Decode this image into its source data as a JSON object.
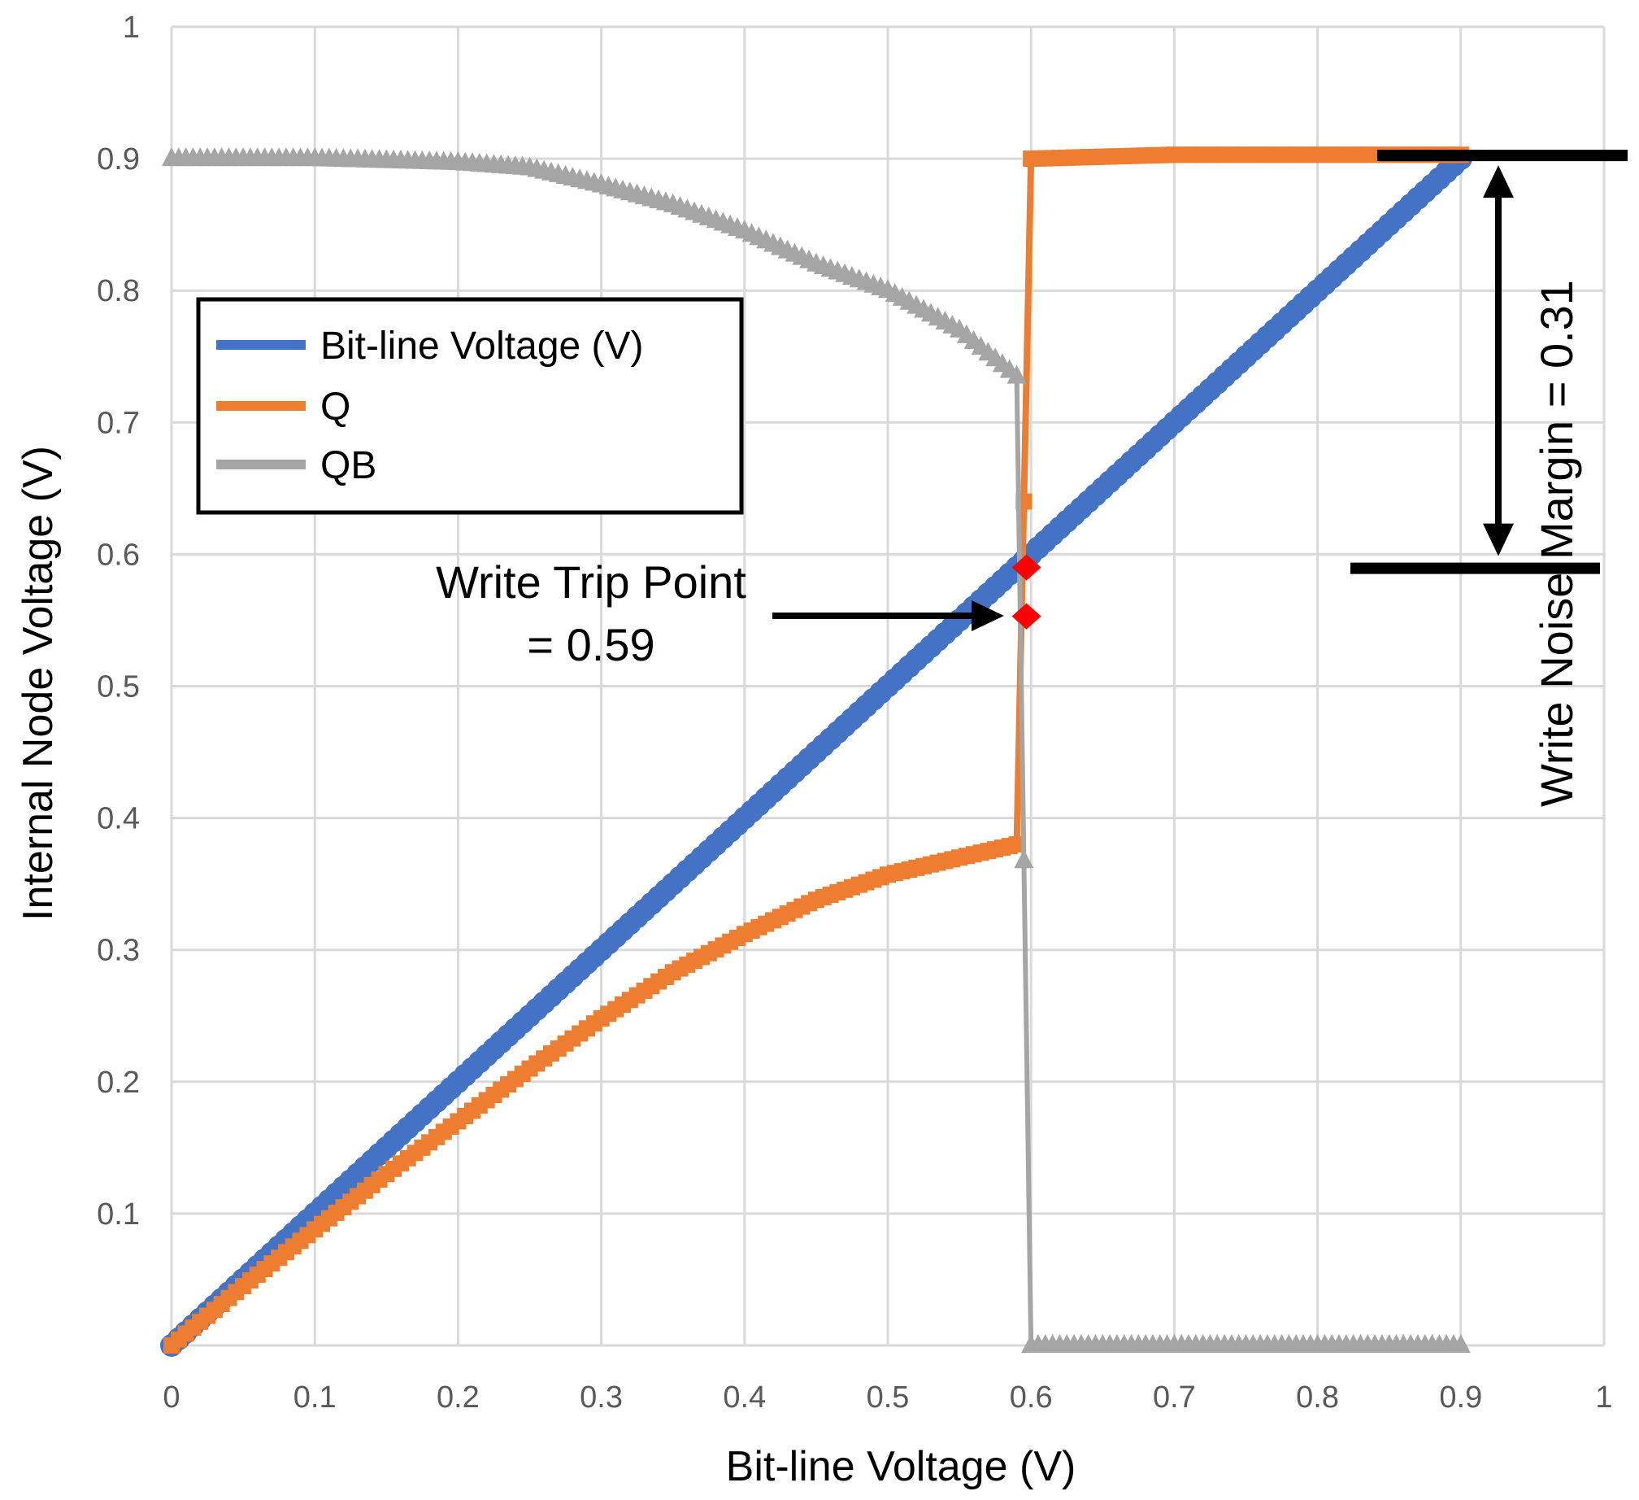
{
  "chart_data": {
    "type": "scatter",
    "xlabel": "Bit-line Voltage (V)",
    "ylabel": "Internal Node Voltage (V)",
    "xlim": [
      0,
      1
    ],
    "ylim": [
      0,
      1
    ],
    "x_ticks": [
      "0",
      "0.1",
      "0.2",
      "0.3",
      "0.4",
      "0.5",
      "0.6",
      "0.7",
      "0.8",
      "0.9",
      "1"
    ],
    "y_ticks": [
      "0.1",
      "0.2",
      "0.3",
      "0.4",
      "0.5",
      "0.6",
      "0.7",
      "0.8",
      "0.9",
      "1"
    ],
    "grid": true,
    "legend_position": "upper-left",
    "series": [
      {
        "name": "Bit-line Voltage (V)",
        "color": "#4472C4",
        "marker": "circle",
        "points": [
          [
            0,
            0
          ],
          [
            0.9,
            0.9
          ]
        ]
      },
      {
        "name": "Q",
        "color": "#ED7D31",
        "marker": "square",
        "points": [
          [
            0,
            0
          ],
          [
            0.05,
            0.045
          ],
          [
            0.1,
            0.088
          ],
          [
            0.15,
            0.13
          ],
          [
            0.2,
            0.17
          ],
          [
            0.25,
            0.21
          ],
          [
            0.3,
            0.248
          ],
          [
            0.35,
            0.283
          ],
          [
            0.4,
            0.312
          ],
          [
            0.45,
            0.338
          ],
          [
            0.5,
            0.357
          ],
          [
            0.55,
            0.37
          ],
          [
            0.59,
            0.38
          ],
          [
            0.6,
            0.9
          ],
          [
            0.7,
            0.903
          ],
          [
            0.8,
            0.903
          ],
          [
            0.9,
            0.903
          ]
        ]
      },
      {
        "name": "QB",
        "color": "#A5A5A5",
        "marker": "triangle",
        "points": [
          [
            0,
            0.9
          ],
          [
            0.1,
            0.9
          ],
          [
            0.2,
            0.897
          ],
          [
            0.25,
            0.893
          ],
          [
            0.3,
            0.88
          ],
          [
            0.35,
            0.865
          ],
          [
            0.4,
            0.845
          ],
          [
            0.45,
            0.82
          ],
          [
            0.5,
            0.8
          ],
          [
            0.55,
            0.77
          ],
          [
            0.59,
            0.735
          ],
          [
            0.6,
            0
          ],
          [
            0.7,
            0
          ],
          [
            0.8,
            0
          ],
          [
            0.9,
            0
          ]
        ]
      }
    ],
    "trip_markers": {
      "color": "#FF0000",
      "points": [
        [
          0.59,
          0.59
        ],
        [
          0.59,
          0.553
        ]
      ]
    },
    "annotations": {
      "write_trip_point": {
        "line1": "Write Trip Point",
        "line2": "= 0.59"
      },
      "write_noise_margin": {
        "text": "Write Noise Margin = 0.31",
        "upper_level": 0.9,
        "lower_level": 0.59
      }
    }
  }
}
